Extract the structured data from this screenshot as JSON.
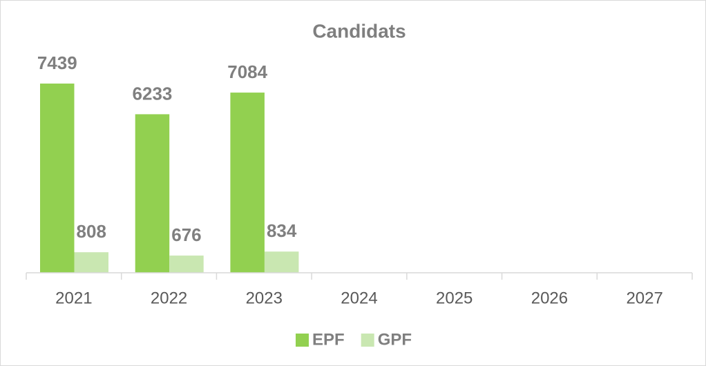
{
  "chart_data": {
    "type": "bar",
    "title": "Candidats",
    "categories": [
      "2021",
      "2022",
      "2023",
      "2024",
      "2025",
      "2026",
      "2027"
    ],
    "series": [
      {
        "name": "EPF",
        "color": "#92d050",
        "values": [
          7439,
          6233,
          7084,
          null,
          null,
          null,
          null
        ]
      },
      {
        "name": "GPF",
        "color": "#c9e7b1",
        "values": [
          808,
          676,
          834,
          null,
          null,
          null,
          null
        ]
      }
    ],
    "legend": "bottom"
  }
}
